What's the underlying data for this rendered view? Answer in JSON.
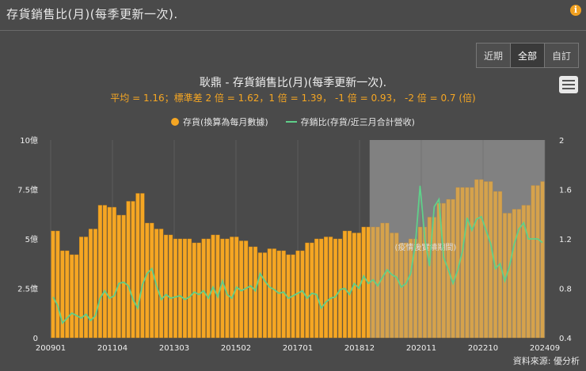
{
  "header": {
    "title": "存貨銷售比(月)(每季更新一次).",
    "info_icon": "info-icon"
  },
  "range_buttons": [
    "近期",
    "全部",
    "自訂"
  ],
  "active_range": "全部",
  "menu_icon": "hamburger-menu-icon",
  "source": "資料來源: 優分析",
  "colors": {
    "bar": "#f5a623",
    "line": "#5fd08a",
    "subtitle": "#f5a623",
    "shade": "#7a7a7a"
  },
  "chart_data": {
    "type": "bar",
    "title": "耿鼎 - 存貨銷售比(月)(每季更新一次).",
    "subtitle": "平均 = 1.16；標準差 2 倍 = 1.62，1 倍 = 1.39， -1 倍 = 0.93， -2 倍 = 0.7 (倍)",
    "legend": [
      "存貨(換算為每月數據)",
      "存銷比(存貨/近三月合計營收)"
    ],
    "left_axis": {
      "ticks": [
        "0",
        "2.5億",
        "5億",
        "7.5億",
        "10億"
      ],
      "range": [
        0,
        10
      ],
      "unit": "億"
    },
    "right_axis": {
      "ticks": [
        "0.4",
        "0.8",
        "1.2",
        "1.6",
        "2"
      ],
      "range": [
        0.4,
        2
      ]
    },
    "x_tick_labels": [
      "200901",
      "201104",
      "201303",
      "201502",
      "201701",
      "201812",
      "202011",
      "202210",
      "202409"
    ],
    "shaded_region": {
      "start": "2019-03",
      "end": "2024-09",
      "label": "(疫情後實績期間)"
    },
    "series": [
      {
        "name": "存貨(換算為每月數據)",
        "type": "bar",
        "axis": "left",
        "values": [
          5.4,
          5.4,
          4.4,
          4.4,
          4.2,
          4.2,
          5.1,
          5.1,
          5.5,
          5.5,
          6.7,
          6.7,
          6.6,
          6.6,
          6.2,
          6.2,
          6.9,
          6.9,
          7.3,
          7.3,
          5.8,
          5.8,
          5.5,
          5.5,
          5.2,
          5.2,
          5.0,
          5.0,
          5.0,
          5.0,
          4.8,
          4.8,
          5.0,
          5.0,
          5.2,
          5.2,
          5.0,
          5.0,
          5.1,
          5.1,
          4.9,
          4.9,
          4.6,
          4.6,
          4.3,
          4.3,
          4.5,
          4.5,
          4.4,
          4.4,
          4.2,
          4.2,
          4.4,
          4.4,
          4.8,
          4.8,
          5.0,
          5.0,
          5.1,
          5.1,
          5.0,
          5.0,
          5.4,
          5.4,
          5.3,
          5.3,
          5.6,
          5.6,
          5.6,
          5.6,
          5.8,
          5.8,
          5.3,
          5.3,
          4.8,
          4.8,
          5.0,
          5.0,
          5.6,
          5.6,
          6.1,
          6.1,
          6.8,
          6.8,
          7.0,
          7.0,
          7.6,
          7.6,
          7.6,
          7.6,
          8.0,
          8.0,
          7.9,
          7.9,
          7.4,
          7.4,
          6.3,
          6.3,
          6.5,
          6.5,
          6.7,
          6.7,
          7.7,
          7.7,
          7.9
        ]
      },
      {
        "name": "存銷比(存貨/近三月合計營收)",
        "type": "line",
        "axis": "right",
        "values": [
          0.73,
          0.66,
          0.52,
          0.56,
          0.6,
          0.58,
          0.56,
          0.59,
          0.54,
          0.58,
          0.72,
          0.78,
          0.72,
          0.74,
          0.84,
          0.85,
          0.82,
          0.71,
          0.64,
          0.83,
          0.92,
          0.96,
          0.82,
          0.71,
          0.75,
          0.72,
          0.73,
          0.74,
          0.71,
          0.73,
          0.77,
          0.75,
          0.78,
          0.72,
          0.81,
          0.73,
          0.86,
          0.75,
          0.72,
          0.81,
          0.78,
          0.8,
          0.82,
          0.78,
          0.92,
          0.86,
          0.81,
          0.79,
          0.76,
          0.77,
          0.72,
          0.74,
          0.76,
          0.78,
          0.72,
          0.76,
          0.75,
          0.64,
          0.69,
          0.72,
          0.73,
          0.79,
          0.8,
          0.75,
          0.84,
          0.8,
          0.9,
          0.84,
          0.87,
          0.82,
          0.89,
          0.95,
          0.91,
          0.89,
          0.81,
          0.84,
          0.92,
          1.16,
          1.63,
          1.2,
          0.98,
          1.46,
          1.52,
          1.05,
          0.95,
          0.84,
          0.95,
          1.1,
          1.37,
          1.27,
          1.36,
          1.38,
          1.27,
          1.16,
          0.96,
          1.0,
          0.86,
          0.98,
          1.16,
          1.28,
          1.33,
          1.2,
          1.2,
          1.2,
          1.17
        ]
      }
    ]
  }
}
